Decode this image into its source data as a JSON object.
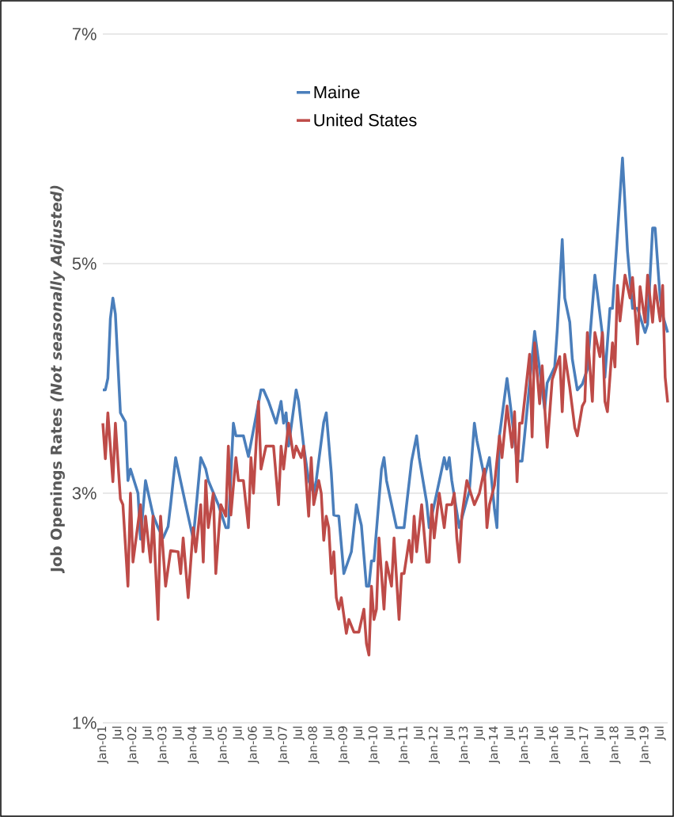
{
  "chart_data": {
    "type": "line",
    "ylabel": "Job Openings Rates *(Not seasonally Adjusted)*",
    "xlim": [
      "2001-01",
      "2019-10"
    ],
    "xticks": [
      {
        "value": "2001-01",
        "label": "Jan-01"
      },
      {
        "value": "2001-07",
        "label": "Jul"
      },
      {
        "value": "2002-01",
        "label": "Jan-02"
      },
      {
        "value": "2002-07",
        "label": "Jul"
      },
      {
        "value": "2003-01",
        "label": "Jan-03"
      },
      {
        "value": "2003-07",
        "label": "Jul"
      },
      {
        "value": "2004-01",
        "label": "Jan-04"
      },
      {
        "value": "2004-07",
        "label": "Jul"
      },
      {
        "value": "2005-01",
        "label": "Jan-05"
      },
      {
        "value": "2005-07",
        "label": "Jul"
      },
      {
        "value": "2006-01",
        "label": "Jan-06"
      },
      {
        "value": "2006-07",
        "label": "Jul"
      },
      {
        "value": "2007-01",
        "label": "Jan-07"
      },
      {
        "value": "2007-07",
        "label": "Jul"
      },
      {
        "value": "2008-01",
        "label": "Jan-08"
      },
      {
        "value": "2008-07",
        "label": "Jul"
      },
      {
        "value": "2009-01",
        "label": "Jan-09"
      },
      {
        "value": "2009-07",
        "label": "Jul"
      },
      {
        "value": "2010-01",
        "label": "Jan-10"
      },
      {
        "value": "2010-07",
        "label": "Jul"
      },
      {
        "value": "2011-01",
        "label": "Jan-11"
      },
      {
        "value": "2011-07",
        "label": "Jul"
      },
      {
        "value": "2012-01",
        "label": "Jan-12"
      },
      {
        "value": "2012-07",
        "label": "Jul"
      },
      {
        "value": "2013-01",
        "label": "Jan-13"
      },
      {
        "value": "2013-07",
        "label": "Jul"
      },
      {
        "value": "2014-01",
        "label": "Jan-14"
      },
      {
        "value": "2014-07",
        "label": "Jul"
      },
      {
        "value": "2015-01",
        "label": "Jan-15"
      },
      {
        "value": "2015-07",
        "label": "Jul"
      },
      {
        "value": "2016-01",
        "label": "Jan-16"
      },
      {
        "value": "2016-07",
        "label": "Jul"
      },
      {
        "value": "2017-01",
        "label": "Jan-17"
      },
      {
        "value": "2017-07",
        "label": "Jul"
      },
      {
        "value": "2018-01",
        "label": "Jan-18"
      },
      {
        "value": "2018-07",
        "label": "Jul"
      },
      {
        "value": "2019-01",
        "label": "Jan-19"
      },
      {
        "value": "2019-07",
        "label": "Jul"
      }
    ],
    "ylim": [
      1,
      7
    ],
    "yticks": [
      {
        "value": 1,
        "label": "1%"
      },
      {
        "value": 3,
        "label": "3%"
      },
      {
        "value": 5,
        "label": "5%"
      },
      {
        "value": 7,
        "label": "7%"
      }
    ],
    "grid": "y",
    "legend": "top",
    "marker": "none",
    "line_style": "solid",
    "series": [
      {
        "name": "Maine",
        "color": "#4a7ebb",
        "x": [
          "2001-01",
          "2001-02",
          "2001-03",
          "2001-04",
          "2001-05",
          "2001-06",
          "2001-08",
          "2001-10",
          "2001-11",
          "2001-12",
          "2002-03",
          "2002-04",
          "2002-06",
          "2002-09",
          "2002-11",
          "2003-01",
          "2003-03",
          "2003-04",
          "2003-06",
          "2003-10",
          "2004-01",
          "2004-04",
          "2004-06",
          "2004-07",
          "2004-11",
          "2005-02",
          "2005-03",
          "2005-05",
          "2005-06",
          "2005-09",
          "2005-11",
          "2006-04",
          "2006-05",
          "2006-07",
          "2006-10",
          "2006-12",
          "2007-01",
          "2007-02",
          "2007-03",
          "2007-06",
          "2007-07",
          "2007-09",
          "2007-11",
          "2008-01",
          "2008-02",
          "2008-05",
          "2008-06",
          "2008-08",
          "2008-09",
          "2008-11",
          "2009-01",
          "2009-04",
          "2009-06",
          "2009-08",
          "2009-10",
          "2009-11",
          "2009-12",
          "2010-01",
          "2010-04",
          "2010-05",
          "2010-06",
          "2010-10",
          "2011-01",
          "2011-02",
          "2011-04",
          "2011-06",
          "2011-07",
          "2011-10",
          "2011-11",
          "2012-02",
          "2012-05",
          "2012-06",
          "2012-07",
          "2012-08",
          "2012-11",
          "2013-03",
          "2013-05",
          "2013-06",
          "2013-09",
          "2013-11",
          "2014-01",
          "2014-02",
          "2014-03",
          "2014-06",
          "2014-07",
          "2014-10",
          "2014-12",
          "2015-01",
          "2015-05",
          "2015-07",
          "2015-09",
          "2015-10",
          "2016-01",
          "2016-02",
          "2016-04",
          "2016-05",
          "2016-07",
          "2016-08",
          "2016-10",
          "2016-12",
          "2017-02",
          "2017-05",
          "2017-06",
          "2017-08",
          "2017-09",
          "2017-11",
          "2017-12",
          "2018-04",
          "2018-06",
          "2018-08",
          "2018-10",
          "2019-01",
          "2019-02",
          "2019-04",
          "2019-05",
          "2019-07",
          "2019-08",
          "2019-10"
        ],
        "values": [
          3.9,
          3.9,
          4.0,
          4.52,
          4.7,
          4.56,
          3.7,
          3.62,
          3.11,
          3.21,
          3.0,
          2.6,
          3.11,
          2.81,
          2.7,
          2.61,
          2.71,
          2.9,
          3.31,
          2.9,
          2.6,
          3.31,
          3.21,
          3.11,
          2.9,
          2.7,
          2.7,
          3.61,
          3.5,
          3.5,
          3.32,
          3.9,
          3.9,
          3.8,
          3.61,
          3.8,
          3.61,
          3.7,
          3.41,
          3.9,
          3.8,
          3.41,
          3.11,
          3.0,
          3.11,
          3.62,
          3.7,
          3.18,
          2.81,
          2.8,
          2.3,
          2.49,
          2.9,
          2.72,
          2.19,
          2.19,
          2.41,
          2.41,
          3.21,
          3.31,
          3.11,
          2.7,
          2.7,
          2.9,
          3.28,
          3.5,
          3.31,
          2.92,
          2.7,
          3.0,
          3.31,
          3.21,
          3.31,
          3.11,
          2.7,
          3.02,
          3.61,
          3.46,
          3.14,
          3.31,
          2.86,
          2.7,
          3.5,
          4.0,
          3.83,
          3.28,
          3.28,
          3.5,
          4.41,
          4.08,
          3.73,
          3.96,
          4.1,
          4.42,
          5.21,
          4.7,
          4.49,
          4.17,
          3.9,
          3.95,
          4.08,
          4.9,
          4.74,
          4.38,
          4.01,
          4.61,
          4.61,
          5.92,
          5.11,
          4.61,
          4.61,
          4.4,
          4.47,
          5.31,
          5.31,
          4.7,
          4.55,
          4.4
        ]
      },
      {
        "name": "United States",
        "color": "#be4b48",
        "x": [
          "2001-01",
          "2001-02",
          "2001-03",
          "2001-05",
          "2001-06",
          "2001-08",
          "2001-09",
          "2001-11",
          "2001-12",
          "2002-01",
          "2002-04",
          "2002-05",
          "2002-06",
          "2002-08",
          "2002-09",
          "2002-11",
          "2002-12",
          "2003-02",
          "2003-04",
          "2003-07",
          "2003-08",
          "2003-09",
          "2003-11",
          "2004-01",
          "2004-02",
          "2004-04",
          "2004-05",
          "2004-06",
          "2004-07",
          "2004-09",
          "2004-10",
          "2004-11",
          "2004-12",
          "2005-02",
          "2005-03",
          "2005-04",
          "2005-06",
          "2005-07",
          "2005-09",
          "2005-11",
          "2005-12",
          "2006-01",
          "2006-03",
          "2006-04",
          "2006-06",
          "2006-09",
          "2006-11",
          "2006-12",
          "2007-01",
          "2007-03",
          "2007-05",
          "2007-06",
          "2007-08",
          "2007-09",
          "2007-11",
          "2007-12",
          "2008-01",
          "2008-03",
          "2008-04",
          "2008-05",
          "2008-06",
          "2008-07",
          "2008-08",
          "2008-09",
          "2008-10",
          "2008-11",
          "2008-12",
          "2009-02",
          "2009-03",
          "2009-05",
          "2009-07",
          "2009-09",
          "2009-10",
          "2009-11",
          "2009-12",
          "2010-01",
          "2010-02",
          "2010-03",
          "2010-05",
          "2010-06",
          "2010-08",
          "2010-09",
          "2010-11",
          "2010-12",
          "2011-01",
          "2011-03",
          "2011-04",
          "2011-05",
          "2011-06",
          "2011-08",
          "2011-10",
          "2011-11",
          "2011-12",
          "2012-01",
          "2012-03",
          "2012-05",
          "2012-06",
          "2012-08",
          "2012-09",
          "2012-10",
          "2012-11",
          "2012-12",
          "2013-02",
          "2013-05",
          "2013-07",
          "2013-09",
          "2013-10",
          "2013-11",
          "2014-01",
          "2014-03",
          "2014-04",
          "2014-06",
          "2014-08",
          "2014-09",
          "2014-10",
          "2014-11",
          "2014-12",
          "2015-03",
          "2015-04",
          "2015-05",
          "2015-07",
          "2015-08",
          "2015-10",
          "2015-12",
          "2016-03",
          "2016-04",
          "2016-05",
          "2016-07",
          "2016-09",
          "2016-10",
          "2016-12",
          "2017-01",
          "2017-02",
          "2017-04",
          "2017-05",
          "2017-07",
          "2017-08",
          "2017-09",
          "2017-10",
          "2017-12",
          "2018-01",
          "2018-02",
          "2018-03",
          "2018-05",
          "2018-07",
          "2018-08",
          "2018-10",
          "2018-11",
          "2019-01",
          "2019-02",
          "2019-04",
          "2019-05",
          "2019-07",
          "2019-08",
          "2019-09",
          "2019-10"
        ],
        "values": [
          3.61,
          3.3,
          3.7,
          3.1,
          3.61,
          2.95,
          2.9,
          2.19,
          3.0,
          2.4,
          2.9,
          2.49,
          2.8,
          2.4,
          2.8,
          1.9,
          2.8,
          2.19,
          2.5,
          2.49,
          2.3,
          2.61,
          2.09,
          2.7,
          2.49,
          2.9,
          2.4,
          3.11,
          2.7,
          3.0,
          2.3,
          2.61,
          2.9,
          2.8,
          3.41,
          2.81,
          3.31,
          3.11,
          3.11,
          2.7,
          3.31,
          3.0,
          3.8,
          3.21,
          3.41,
          3.41,
          2.9,
          3.41,
          3.21,
          3.61,
          3.31,
          3.41,
          3.31,
          3.41,
          2.8,
          3.31,
          2.9,
          3.11,
          3.0,
          2.59,
          2.8,
          2.7,
          2.3,
          2.49,
          2.09,
          1.99,
          2.09,
          1.78,
          1.9,
          1.79,
          1.79,
          1.99,
          1.69,
          1.59,
          2.19,
          1.9,
          1.99,
          2.61,
          1.99,
          2.4,
          2.19,
          2.61,
          1.9,
          2.3,
          2.3,
          2.59,
          2.4,
          2.8,
          2.49,
          2.9,
          2.4,
          2.4,
          2.9,
          2.61,
          3.0,
          2.7,
          2.9,
          2.9,
          3.0,
          2.61,
          2.4,
          2.8,
          3.11,
          2.9,
          3.0,
          3.21,
          2.7,
          2.9,
          3.07,
          3.5,
          3.31,
          3.76,
          3.4,
          3.71,
          3.1,
          3.61,
          3.61,
          4.21,
          3.49,
          4.31,
          3.78,
          4.11,
          3.4,
          3.99,
          4.19,
          3.71,
          4.21,
          3.92,
          3.57,
          3.5,
          3.76,
          3.8,
          4.4,
          3.8,
          4.4,
          4.19,
          4.4,
          3.8,
          3.71,
          4.31,
          4.1,
          4.81,
          4.5,
          4.9,
          4.7,
          4.88,
          4.3,
          4.8,
          4.49,
          4.9,
          4.49,
          4.81,
          4.5,
          4.81,
          4.01,
          3.79
        ]
      }
    ]
  }
}
